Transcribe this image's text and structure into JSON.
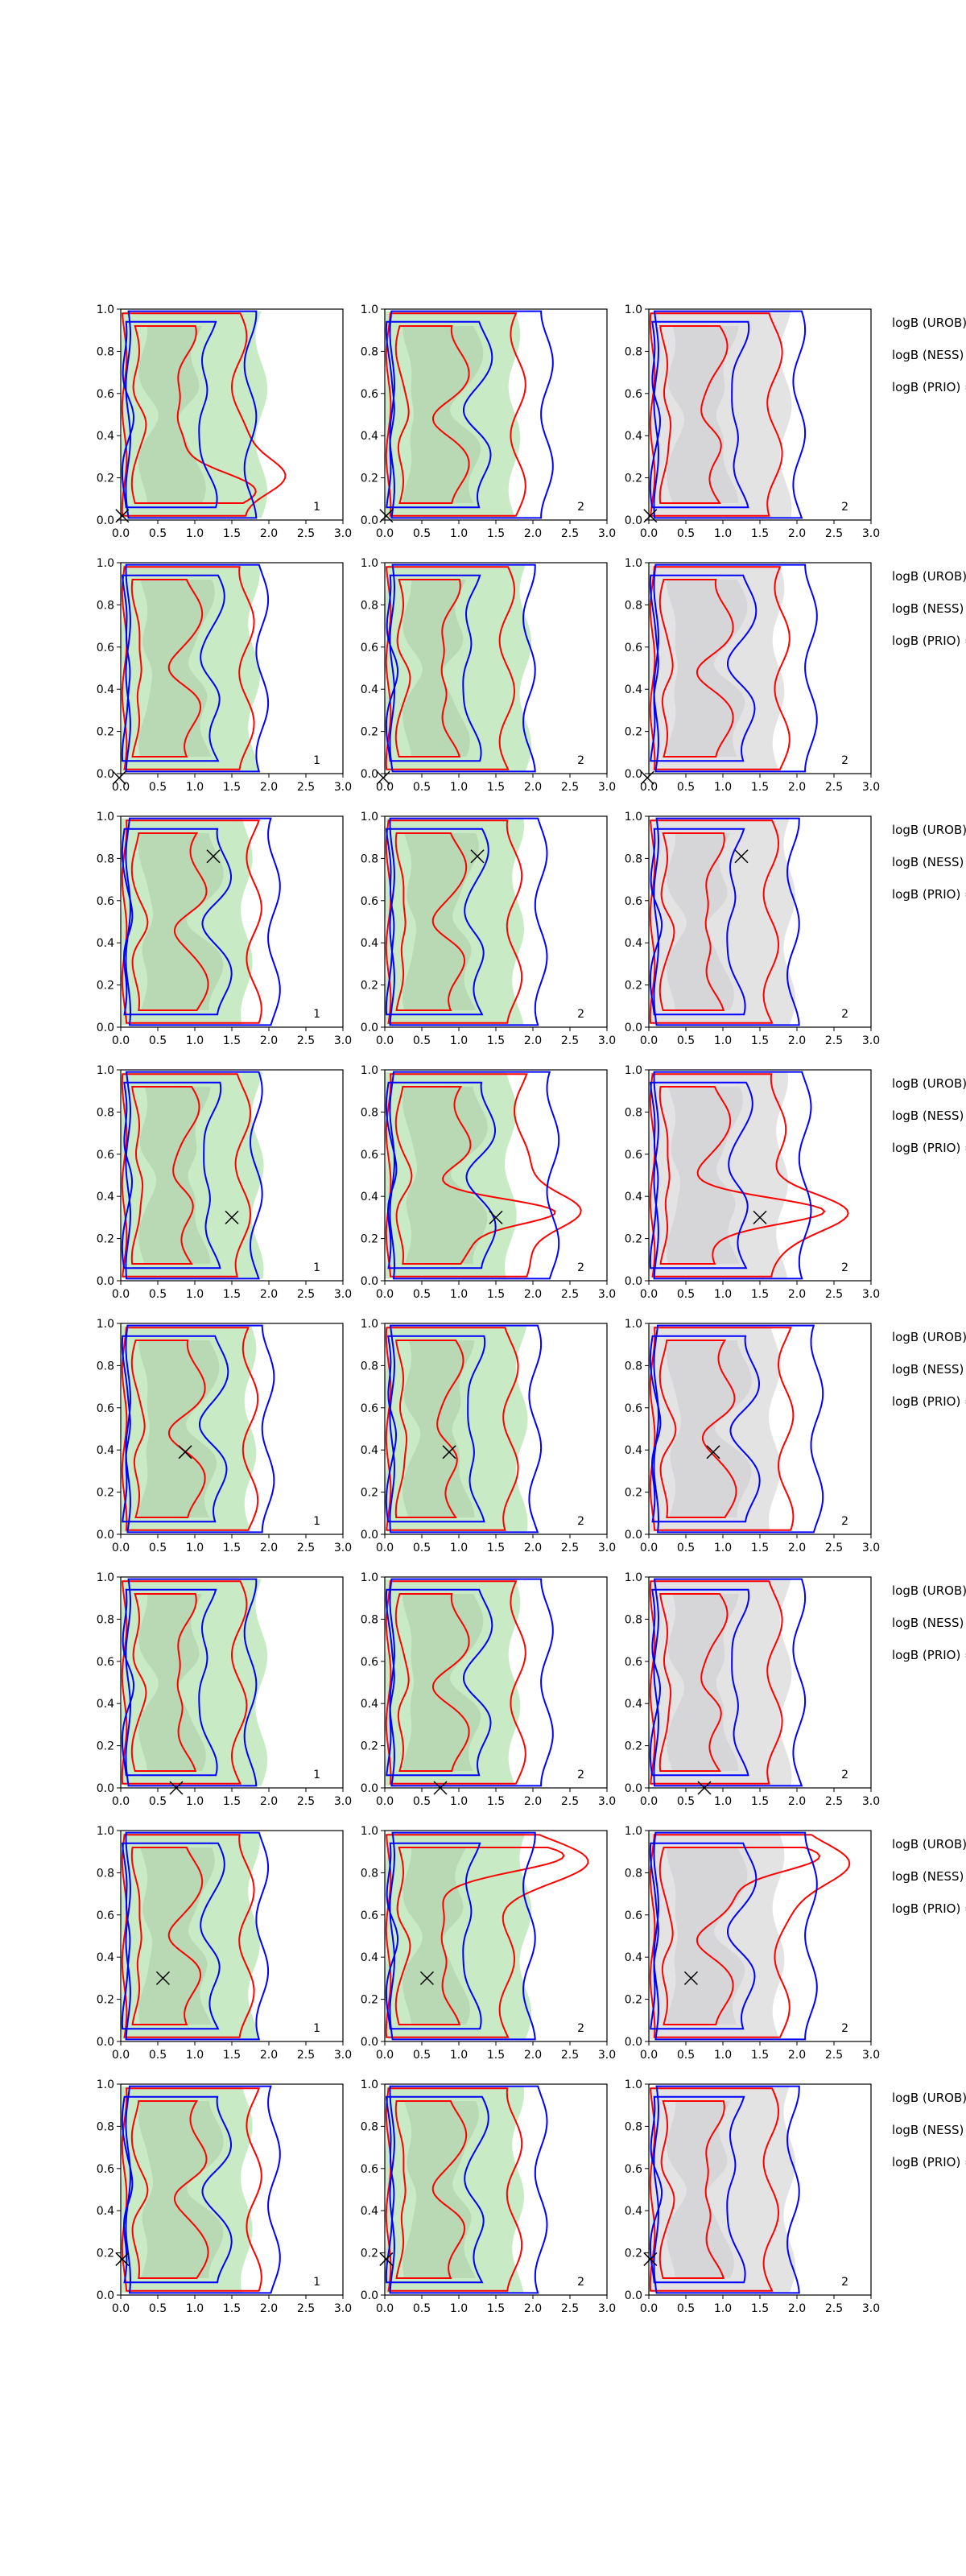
{
  "figure": {
    "x_tick_labels": [
      "0.0",
      "0.5",
      "1.0",
      "1.5",
      "2.0",
      "2.5",
      "3.0"
    ],
    "y_tick_labels": [
      "0.0",
      "0.2",
      "0.4",
      "0.6",
      "0.8",
      "1.0"
    ],
    "row_annotations": [
      "logB (UROB) =",
      "logB (NESS) =",
      "logB (PRIO) ="
    ],
    "colors": {
      "uniform_fill": "#b6e3b0",
      "skewed_fill": "#a6c6a4",
      "gray_fill": "#d9d9d9",
      "red_contour": "#ff0000",
      "blue_contour": "#0000ff",
      "axes": "#000000"
    }
  },
  "chart_data": {
    "type": "contour-grid",
    "rows": 8,
    "cols": 3,
    "xlim": [
      0,
      3
    ],
    "ylim": [
      0,
      1
    ],
    "grid": false,
    "columns": [
      {
        "corner_label": "1",
        "fill_color": "green"
      },
      {
        "corner_label": "2",
        "fill_color": "green"
      },
      {
        "corner_label": "2",
        "fill_color": "gray"
      }
    ],
    "markers": [
      {
        "x": 0.02,
        "y": 0.02
      },
      {
        "x": -0.02,
        "y": -0.02
      },
      {
        "x": 1.25,
        "y": 0.81
      },
      {
        "x": 1.5,
        "y": 0.3
      },
      {
        "x": 0.87,
        "y": 0.39
      },
      {
        "x": 0.75,
        "y": 0.0
      },
      {
        "x": 0.57,
        "y": 0.3
      },
      {
        "x": 0.02,
        "y": 0.17
      }
    ]
  }
}
